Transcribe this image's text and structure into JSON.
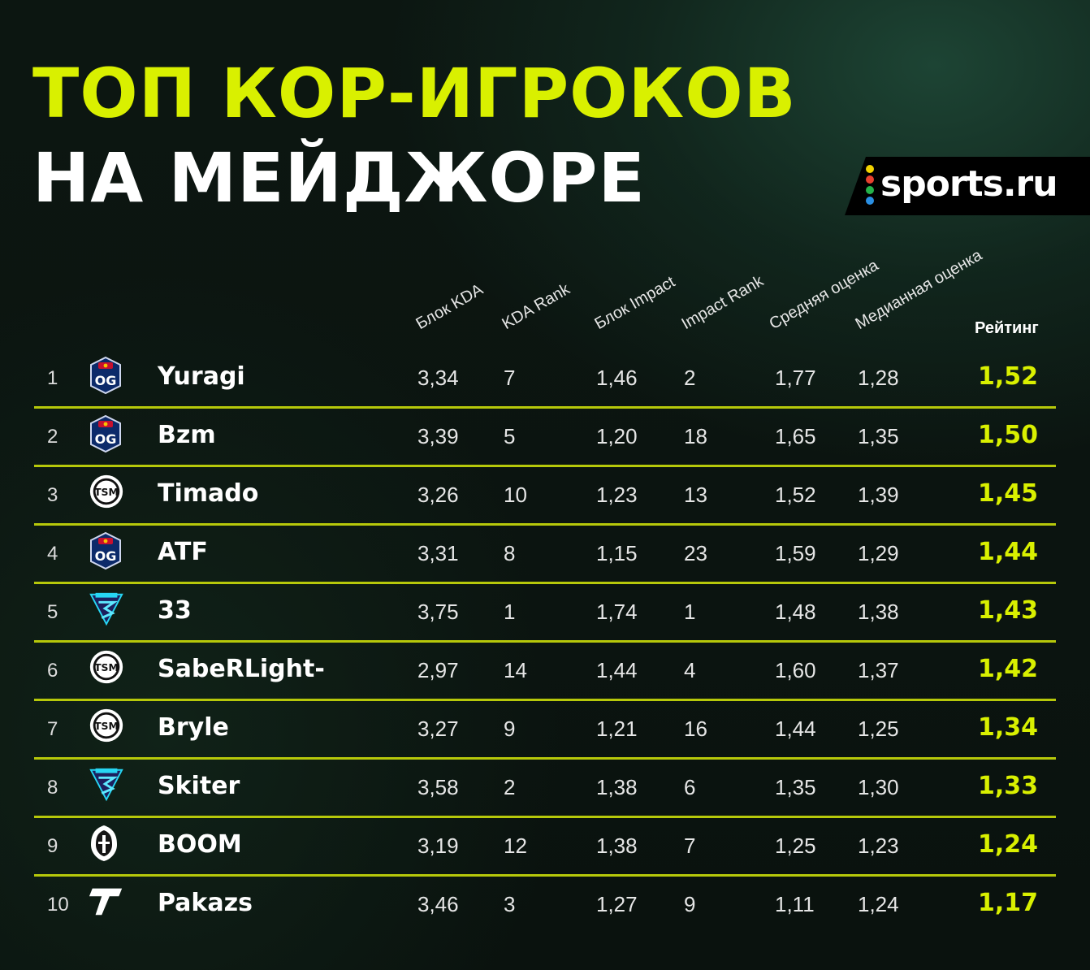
{
  "title": {
    "line1": "ТОП КОР-ИГРОКОВ",
    "line2": "НА МЕЙДЖОРЕ"
  },
  "brand": {
    "name": "sports.ru",
    "dot_colors": [
      "#f2d300",
      "#e8402e",
      "#25b24a",
      "#2a8fe3",
      "#e24f9c"
    ]
  },
  "accent_color": "#d9f000",
  "divider_color": "#b6c80a",
  "columns": {
    "kda": "Блок KDA",
    "kda_rank": "KDA Rank",
    "impact": "Блок Impact",
    "impact_rank": "Impact Rank",
    "avg": "Средняя оценка",
    "median": "Медианная оценка",
    "rating": "Рейтинг"
  },
  "rows": [
    {
      "rank": "1",
      "team_icon": "og-logo-icon",
      "name": "Yuragi",
      "kda": "3,34",
      "kda_rank": "7",
      "impact": "1,46",
      "impact_rank": "2",
      "avg": "1,77",
      "median": "1,28",
      "rating": "1,52"
    },
    {
      "rank": "2",
      "team_icon": "og-logo-icon",
      "name": "Bzm",
      "kda": "3,39",
      "kda_rank": "5",
      "impact": "1,20",
      "impact_rank": "18",
      "avg": "1,65",
      "median": "1,35",
      "rating": "1,50"
    },
    {
      "rank": "3",
      "team_icon": "tsm-logo-icon",
      "name": "Timado",
      "kda": "3,26",
      "kda_rank": "10",
      "impact": "1,23",
      "impact_rank": "13",
      "avg": "1,52",
      "median": "1,39",
      "rating": "1,45"
    },
    {
      "rank": "4",
      "team_icon": "og-logo-icon",
      "name": "ATF",
      "kda": "3,31",
      "kda_rank": "8",
      "impact": "1,15",
      "impact_rank": "23",
      "avg": "1,59",
      "median": "1,29",
      "rating": "1,44"
    },
    {
      "rank": "5",
      "team_icon": "tundra-logo-icon",
      "name": "33",
      "kda": "3,75",
      "kda_rank": "1",
      "impact": "1,74",
      "impact_rank": "1",
      "avg": "1,48",
      "median": "1,38",
      "rating": "1,43"
    },
    {
      "rank": "6",
      "team_icon": "tsm-logo-icon",
      "name": "SabeRLight-",
      "kda": "2,97",
      "kda_rank": "14",
      "impact": "1,44",
      "impact_rank": "4",
      "avg": "1,60",
      "median": "1,37",
      "rating": "1,42"
    },
    {
      "rank": "7",
      "team_icon": "tsm-logo-icon",
      "name": "Bryle",
      "kda": "3,27",
      "kda_rank": "9",
      "impact": "1,21",
      "impact_rank": "16",
      "avg": "1,44",
      "median": "1,25",
      "rating": "1,34"
    },
    {
      "rank": "8",
      "team_icon": "tundra-logo-icon",
      "name": "Skiter",
      "kda": "3,58",
      "kda_rank": "2",
      "impact": "1,38",
      "impact_rank": "6",
      "avg": "1,35",
      "median": "1,30",
      "rating": "1,33"
    },
    {
      "rank": "9",
      "team_icon": "gladiators-logo-icon",
      "name": "BOOM",
      "kda": "3,19",
      "kda_rank": "12",
      "impact": "1,38",
      "impact_rank": "7",
      "avg": "1,25",
      "median": "1,23",
      "rating": "1,24"
    },
    {
      "rank": "10",
      "team_icon": "thunder-logo-icon",
      "name": "Pakazs",
      "kda": "3,46",
      "kda_rank": "3",
      "impact": "1,27",
      "impact_rank": "9",
      "avg": "1,11",
      "median": "1,24",
      "rating": "1,17"
    }
  ]
}
